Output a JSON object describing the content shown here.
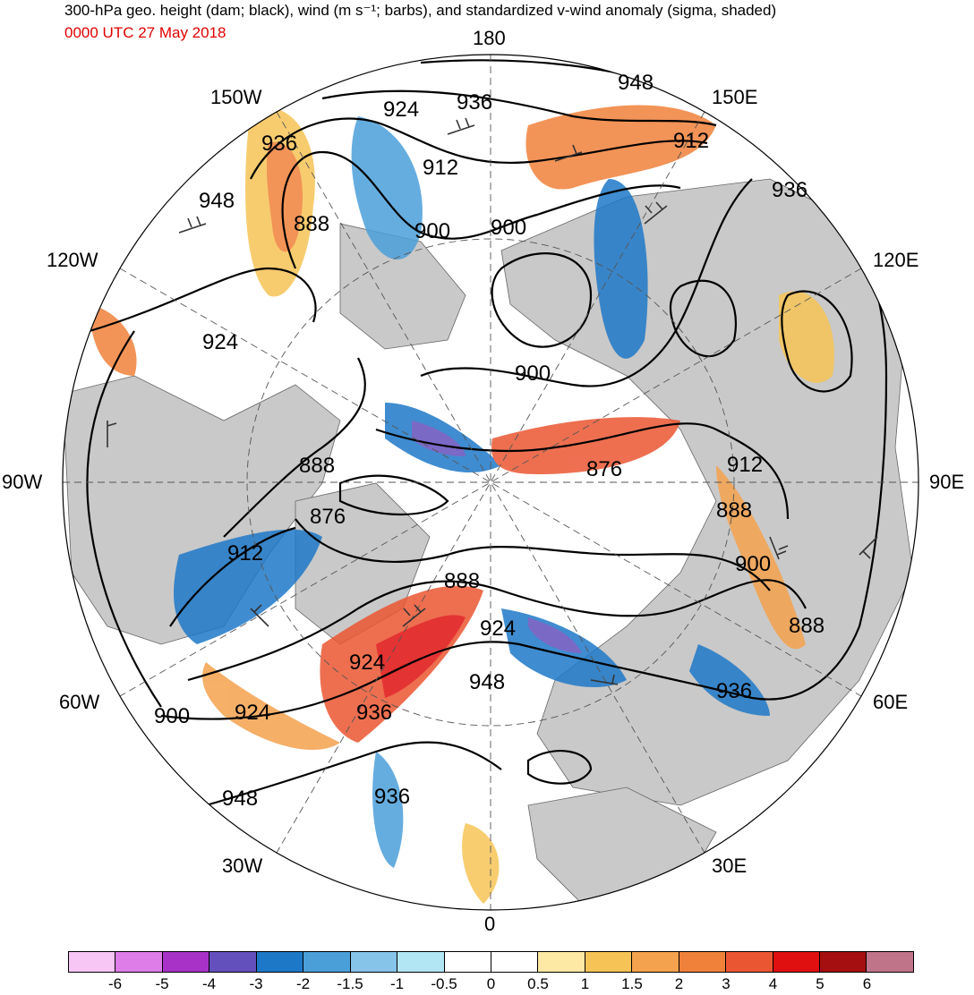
{
  "header": {
    "title": "300-hPa geo. height (dam; black), wind (m s⁻¹; barbs), and standardized v-wind anomaly (sigma, shaded)",
    "valid_time": "0000 UTC 27 May 2018"
  },
  "map": {
    "projection": "north-polar-stereographic",
    "longitude_labels": {
      "lon_180": "180",
      "lon_150E": "150E",
      "lon_120E": "120E",
      "lon_90E": "90E",
      "lon_60E": "60E",
      "lon_30E": "30E",
      "lon_0": "0",
      "lon_30W": "30W",
      "lon_60W": "60W",
      "lon_90W": "90W",
      "lon_120W": "120W",
      "lon_150W": "150W"
    },
    "contour_labels": [
      "948",
      "936",
      "924",
      "912",
      "900",
      "900",
      "936",
      "150E",
      "912",
      "936",
      "948",
      "888",
      "924",
      "900",
      "888",
      "876",
      "912",
      "888",
      "876",
      "912",
      "888",
      "900",
      "924",
      "888",
      "924",
      "948",
      "936",
      "936",
      "900",
      "924",
      "948",
      "936"
    ]
  },
  "colorbar": {
    "colors": [
      "#f7c6f5",
      "#de7de8",
      "#a832c8",
      "#6450bd",
      "#1e78c8",
      "#4b9fd9",
      "#86c4ea",
      "#b2e6f5",
      "#ffffff",
      "#ffffff",
      "#fde9a4",
      "#f6c456",
      "#f4a24d",
      "#f0813a",
      "#eb5632",
      "#e01010",
      "#a50f0f",
      "#c0748a"
    ],
    "ticks": [
      "-6",
      "-5",
      "-4",
      "-3",
      "-2",
      "-1.5",
      "-1",
      "-0.5",
      "0",
      "0.5",
      "1",
      "1.5",
      "2",
      "3",
      "4",
      "5",
      "6"
    ]
  }
}
